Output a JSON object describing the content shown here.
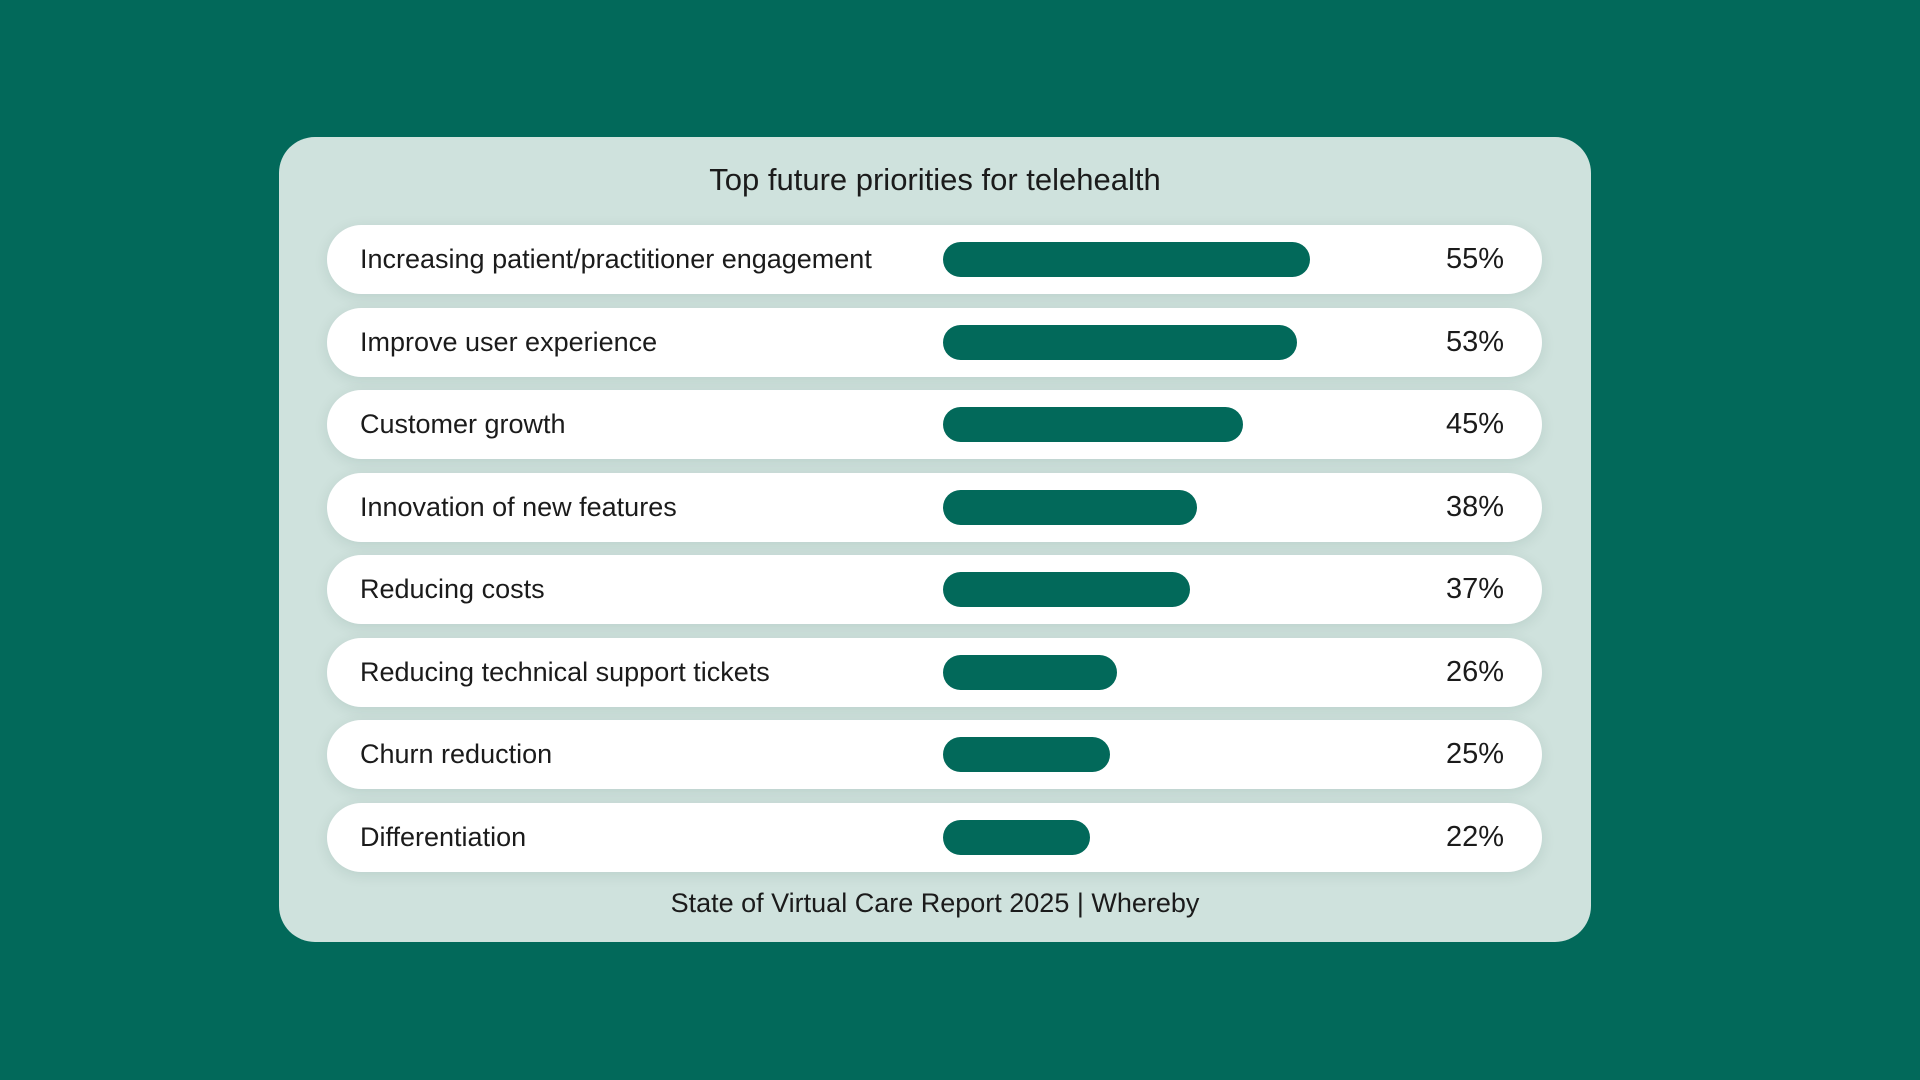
{
  "colors": {
    "background": "#02695A",
    "card": "#CFE2DD",
    "row": "#FFFFFF",
    "bar": "#02695A"
  },
  "chart_data": {
    "type": "bar",
    "orientation": "horizontal",
    "title": "Top future priorities for telehealth",
    "categories": [
      "Increasing patient/practitioner engagement",
      "Improve user experience",
      "Customer growth",
      "Innovation of new features",
      "Reducing costs",
      "Reducing technical support tickets",
      "Churn reduction",
      "Differentiation"
    ],
    "values": [
      55,
      53,
      45,
      38,
      37,
      26,
      25,
      22
    ],
    "value_labels": [
      "55%",
      "53%",
      "45%",
      "38%",
      "37%",
      "26%",
      "25%",
      "22%"
    ],
    "unit": "%",
    "xlim": [
      0,
      65
    ],
    "grid": false,
    "source": "State of Virtual Care Report 2025 | Whereby"
  }
}
